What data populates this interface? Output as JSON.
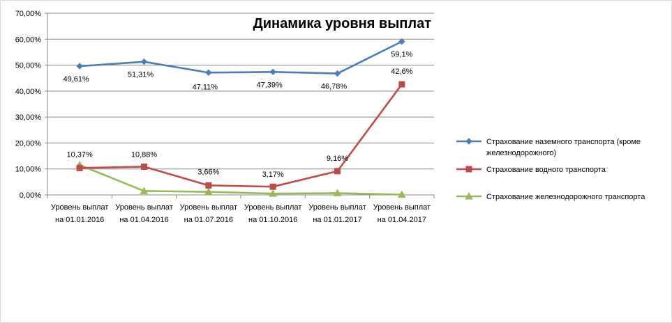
{
  "chart_data": {
    "type": "line",
    "title": "Динамика уровня выплат",
    "ylim": [
      0,
      70
    ],
    "yticks": [
      "0,00%",
      "10,00%",
      "20,00%",
      "30,00%",
      "40,00%",
      "50,00%",
      "60,00%",
      "70,00%"
    ],
    "categories": [
      [
        "Уровень выплат",
        "на 01.01.2016"
      ],
      [
        "Уровень выплат",
        "на 01.04.2016"
      ],
      [
        "Уровень выплат",
        "на 01.07.2016"
      ],
      [
        "Уровень выплат",
        "на 01.10.2016"
      ],
      [
        "Уровень выплат",
        "на 01.01.2017"
      ],
      [
        "Уровень выплат",
        "на 01.04.2017"
      ]
    ],
    "grid": true,
    "legend_position": "right",
    "series": [
      {
        "name": "Страхование наземного транспорта (кроме железнодорожного)",
        "legend_lines": [
          "Страхование наземного транспорта (кроме",
          "железнодорожного)"
        ],
        "color": "#4A7EBB",
        "marker": "diamond",
        "values": [
          49.61,
          51.31,
          47.11,
          47.39,
          46.78,
          59.1
        ],
        "labels": [
          "49,61%",
          "51,31%",
          "47,11%",
          "47,39%",
          "46,78%",
          "59,1%"
        ]
      },
      {
        "name": "Страхование водного транспорта",
        "legend_lines": [
          "Страхование водного транспорта"
        ],
        "color": "#BE4B48",
        "marker": "square",
        "values": [
          10.37,
          10.88,
          3.66,
          3.17,
          9.16,
          42.6
        ],
        "labels": [
          "10,37%",
          "10,88%",
          "3,66%",
          "3,17%",
          "9,16%",
          "42,6%"
        ]
      },
      {
        "name": "Страхование железнодорожного транспорта",
        "legend_lines": [
          "Страхование железнодорожного транспорта"
        ],
        "color": "#98B954",
        "marker": "triangle",
        "values": [
          11.5,
          1.5,
          1.2,
          0.5,
          0.7,
          0.1
        ],
        "labels": []
      }
    ]
  }
}
